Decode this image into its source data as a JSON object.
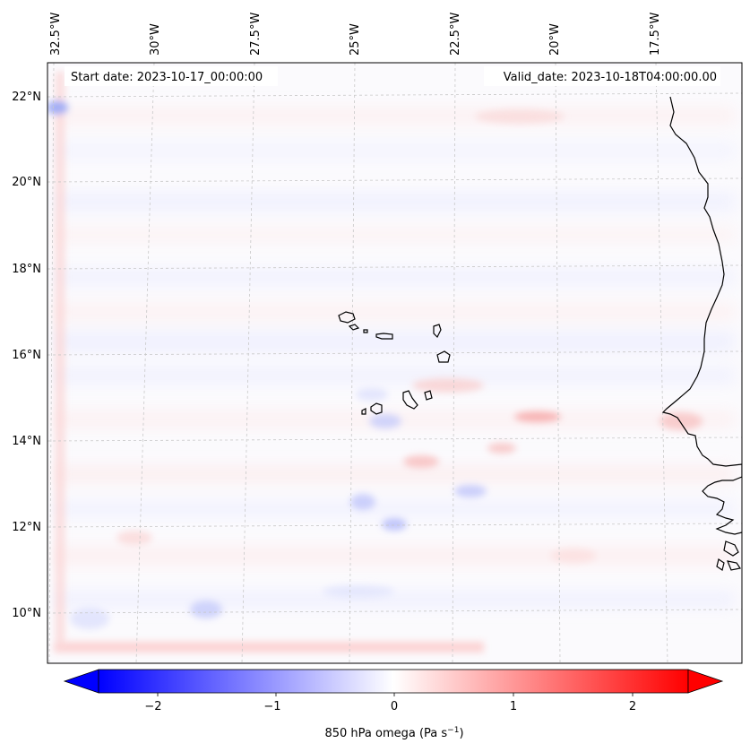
{
  "map": {
    "start_label": "Start date: 2023-10-17_00:00:00",
    "valid_label": "Valid_date: 2023-10-18T04:00:00.00",
    "lon_labels": [
      "32.5°W",
      "30°W",
      "27.5°W",
      "25°W",
      "22.5°W",
      "20°W",
      "17.5°W"
    ],
    "lat_labels": [
      "22°N",
      "20°N",
      "18°N",
      "16°N",
      "14°N",
      "12°N",
      "10°N"
    ]
  },
  "colorbar": {
    "label_main": "850 hPa omega (Pa s",
    "label_sup": "−1",
    "label_end": ")",
    "ticks": [
      "−2",
      "−1",
      "0",
      "1",
      "2"
    ],
    "min_color": "#0000ff",
    "mid_color": "#ffffff",
    "max_color": "#ff0000"
  },
  "colors": {
    "coastline": "#000000",
    "gridline": "#c8c8c8"
  }
}
